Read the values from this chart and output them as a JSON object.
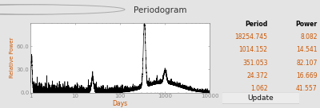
{
  "title": "Periodogram",
  "xlabel": "Days",
  "ylabel": "Relative Power",
  "ylim": [
    0.0,
    90.0
  ],
  "yticks": [
    0.0,
    30.0,
    60.0
  ],
  "ytick_labels": [
    "0.0",
    "30.0",
    "60.0"
  ],
  "xticks": [
    1,
    10,
    100,
    1000,
    10000
  ],
  "xtick_labels": [
    "1",
    "10",
    "100",
    "1000",
    "10000"
  ],
  "peaks": [
    {
      "period": 18254.745,
      "power": 8.082
    },
    {
      "period": 1014.152,
      "power": 14.541
    },
    {
      "period": 351.053,
      "power": 82.107
    },
    {
      "period": 24.372,
      "power": 16.669
    },
    {
      "period": 1.062,
      "power": 41.557
    }
  ],
  "table_headers": [
    "Period",
    "Power"
  ],
  "window_bg": "#e4e4e4",
  "titlebar_bg": "#d8d8d8",
  "plot_bg": "#ffffff",
  "line_color": "#000000",
  "axis_text_color": "#cc5500",
  "table_text_color": "#000000",
  "table_data_color": "#cc5500",
  "btn_bg": "#ececec",
  "btn_border": "#aaaaaa",
  "btn_text": "#111111",
  "dot_colors": [
    "#f4f4f4",
    "#f4f4f4",
    "#f4f4f4"
  ],
  "dot_border": "#aaaaaa"
}
